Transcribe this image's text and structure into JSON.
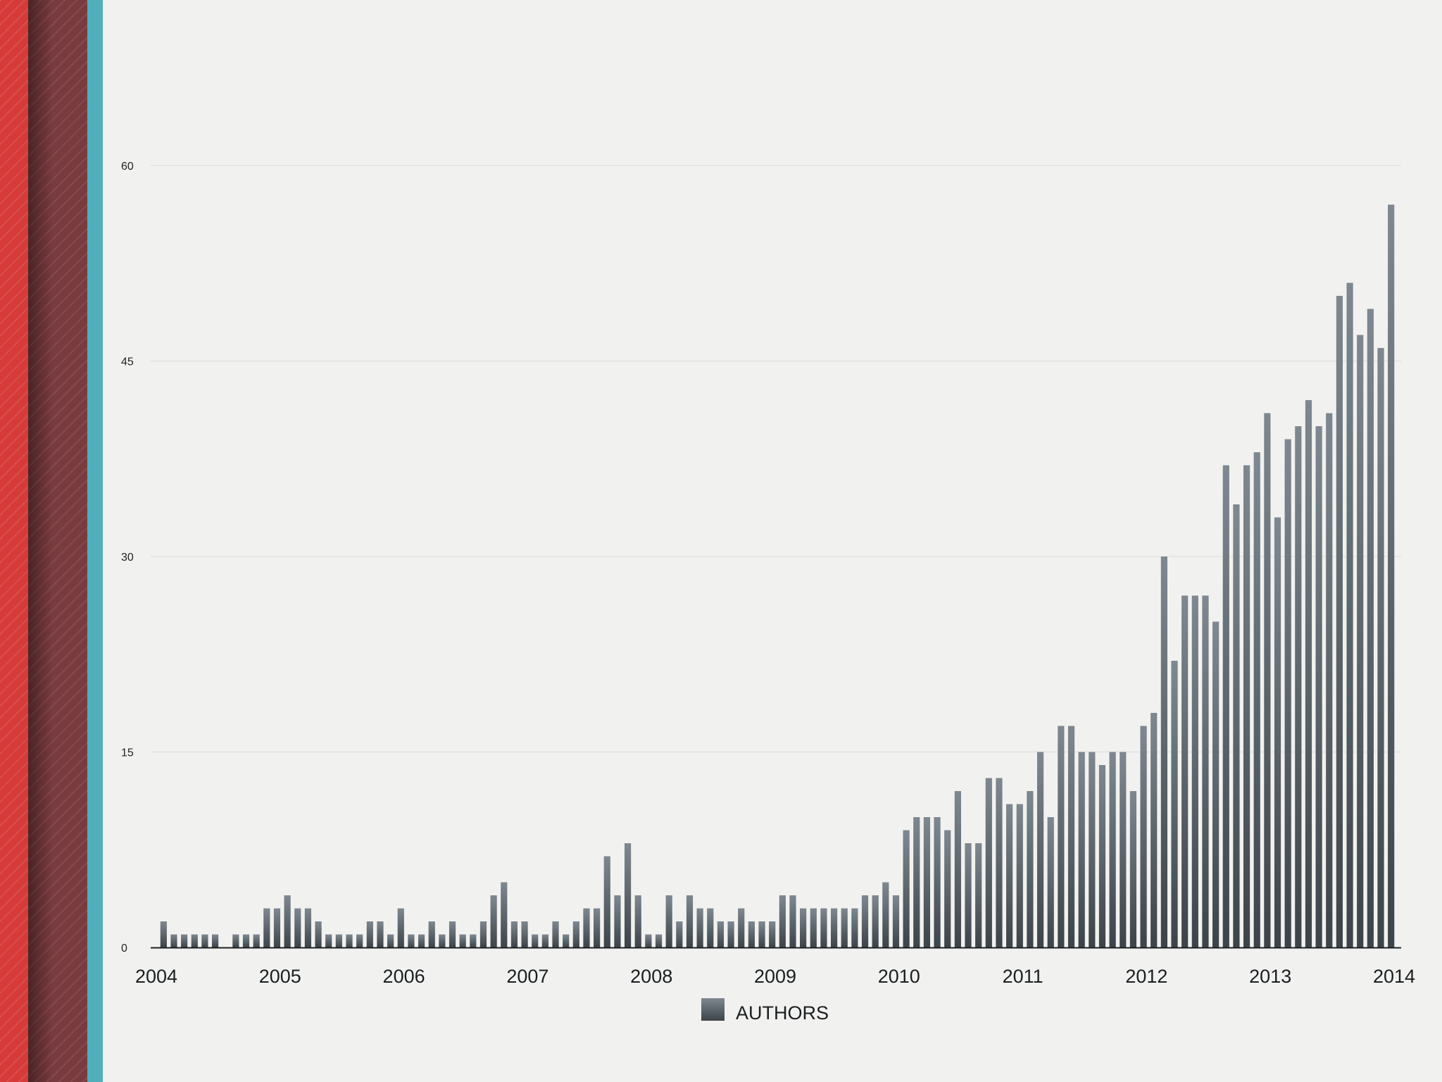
{
  "colors": {
    "background": "#f1f2f0",
    "bar_top": "#7f8890",
    "bar_bottom": "#3c4449",
    "gridline": "#e0e3e3",
    "axis": "#1e2225",
    "side_stripes": [
      "#d63a39",
      "#7a3b3f",
      "#4fb0bb"
    ]
  },
  "chart_data": {
    "type": "bar",
    "series": [
      {
        "name": "AUTHORS",
        "values": [
          2,
          1,
          1,
          1,
          1,
          1,
          0,
          1,
          1,
          1,
          3,
          3,
          4,
          3,
          3,
          2,
          1,
          1,
          1,
          1,
          2,
          2,
          1,
          3,
          1,
          1,
          2,
          1,
          2,
          1,
          1,
          2,
          4,
          5,
          2,
          2,
          1,
          1,
          2,
          1,
          2,
          3,
          3,
          7,
          4,
          8,
          4,
          1,
          1,
          4,
          2,
          4,
          3,
          3,
          2,
          2,
          3,
          2,
          2,
          2,
          4,
          4,
          3,
          3,
          3,
          3,
          3,
          3,
          4,
          4,
          5,
          4,
          9,
          10,
          10,
          10,
          9,
          12,
          8,
          8,
          13,
          13,
          11,
          11,
          12,
          15,
          10,
          17,
          17,
          15,
          15,
          14,
          15,
          15,
          12,
          17,
          18,
          30,
          22,
          27,
          27,
          27,
          25,
          37,
          34,
          37,
          38,
          41,
          33,
          39,
          40,
          42,
          40,
          41,
          50,
          51,
          47,
          49,
          46,
          57
        ]
      }
    ],
    "x_tick_labels": [
      "2004",
      "2005",
      "2006",
      "2007",
      "2008",
      "2009",
      "2010",
      "2011",
      "2012",
      "2013",
      "2014"
    ],
    "y_ticks": [
      0,
      15,
      30,
      45,
      60
    ],
    "ylim": [
      0,
      60
    ],
    "grid": true,
    "legend": {
      "placement": "bottom-center",
      "label": "AUTHORS",
      "swatch_icon": "square-swatch-icon"
    }
  }
}
